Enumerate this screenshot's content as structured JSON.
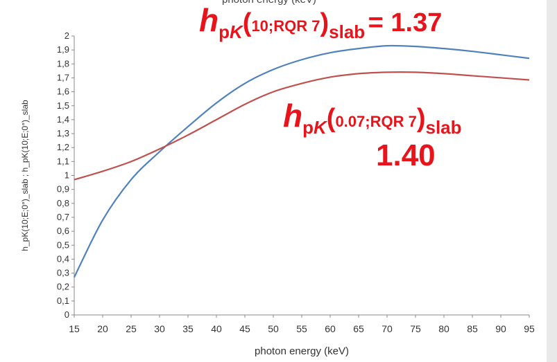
{
  "top_caption": "photon energy (keV)",
  "annotations": {
    "first": {
      "h": "h",
      "sub_p": "p",
      "sub_k": "K",
      "open": "(",
      "arg": "10;RQR 7",
      "close": ")",
      "subscript": "slab",
      "value": "= 1.37"
    },
    "second": {
      "h": "h",
      "sub_p": "p",
      "sub_k": "K",
      "open": "(",
      "arg": "0.07;RQR 7",
      "close": ")",
      "subscript": "slab",
      "value": "1.40"
    }
  },
  "colors": {
    "blue_series": "#4f81bd",
    "red_series": "#c0504d",
    "annotation": "#e8141b",
    "axis": "#888888",
    "strip": "#e9e9e9"
  },
  "chart_data": {
    "type": "line",
    "xlabel": "photon energy (keV)",
    "ylabel": "h_pK(10;E;0°)_slab ; h_pK(10;E;0°)_slab",
    "xlim": [
      15,
      95
    ],
    "ylim": [
      0,
      2
    ],
    "xticks": [
      "15",
      "20",
      "25",
      "30",
      "35",
      "40",
      "45",
      "50",
      "55",
      "60",
      "65",
      "70",
      "75",
      "80",
      "85",
      "90",
      "95"
    ],
    "yticks": [
      "0",
      "0,1",
      "0,2",
      "0,3",
      "0,4",
      "0,5",
      "0,6",
      "0,7",
      "0,8",
      "0,9",
      "1",
      "1,1",
      "1,2",
      "1,3",
      "1,4",
      "1,5",
      "1,6",
      "1,7",
      "1,8",
      "1,9",
      "2"
    ],
    "grid": false,
    "x": [
      15,
      20,
      25,
      30,
      35,
      40,
      45,
      50,
      55,
      60,
      65,
      70,
      75,
      80,
      85,
      90,
      95
    ],
    "series": [
      {
        "color": "#4f81bd",
        "values": [
          0.27,
          0.68,
          0.97,
          1.17,
          1.35,
          1.52,
          1.66,
          1.76,
          1.83,
          1.88,
          1.91,
          1.93,
          1.925,
          1.91,
          1.89,
          1.865,
          1.84
        ]
      },
      {
        "color": "#c0504d",
        "values": [
          0.97,
          1.03,
          1.1,
          1.19,
          1.29,
          1.4,
          1.51,
          1.6,
          1.66,
          1.705,
          1.73,
          1.74,
          1.74,
          1.73,
          1.715,
          1.7,
          1.685
        ]
      }
    ]
  }
}
